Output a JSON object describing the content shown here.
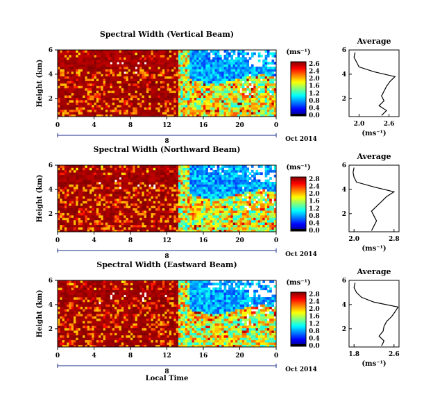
{
  "chart_data": {
    "type": "heatmap",
    "figure": {
      "xlabel": "Local Time",
      "date_label": "Oct 2014",
      "date_marker": "8",
      "colorbar_unit": "(ms⁻¹)"
    },
    "panels": [
      {
        "title": "Spectral Width (Vertical Beam)",
        "ylabel": "Height (km)",
        "x_ticks": [
          "0",
          "4",
          "8",
          "12",
          "16",
          "20",
          "0"
        ],
        "y_ticks": [
          "6",
          "4",
          "2"
        ],
        "xlim": [
          0,
          24
        ],
        "ylim": [
          0.5,
          6
        ],
        "colorbar_ticks": [
          "2.6",
          "2.4",
          "2.0",
          "1.6",
          "1.2",
          "0.8",
          "0.4",
          "0.0"
        ],
        "clim": [
          0,
          2.8
        ],
        "profile": {
          "title": "Average",
          "xlabel": "(ms⁻¹)",
          "x_ticks": [
            "2.0",
            "2.6"
          ],
          "xlim": [
            1.8,
            2.8
          ],
          "y_ticks": [
            "6",
            "4",
            "2"
          ],
          "ylim": [
            0.5,
            6
          ],
          "heights": [
            0.6,
            1.0,
            1.4,
            1.8,
            2.2,
            2.6,
            3.0,
            3.4,
            3.8,
            4.2,
            4.6,
            5.0,
            5.4,
            5.8
          ],
          "values": [
            2.45,
            2.55,
            2.4,
            2.5,
            2.45,
            2.5,
            2.55,
            2.62,
            2.72,
            2.3,
            2.0,
            1.95,
            1.9,
            1.92
          ]
        }
      },
      {
        "title": "Spectral Width (Northward Beam)",
        "ylabel": "Height (km)",
        "x_ticks": [
          "0",
          "4",
          "8",
          "12",
          "16",
          "20",
          "0"
        ],
        "y_ticks": [
          "6",
          "4",
          "2"
        ],
        "xlim": [
          0,
          24
        ],
        "ylim": [
          0.5,
          6
        ],
        "colorbar_ticks": [
          "2.8",
          "2.4",
          "2.0",
          "1.6",
          "1.2",
          "0.8",
          "0.4",
          "0.0"
        ],
        "clim": [
          0,
          2.8
        ],
        "profile": {
          "title": "Average",
          "xlabel": "(ms⁻¹)",
          "x_ticks": [
            "2.0",
            "2.8"
          ],
          "xlim": [
            1.9,
            2.9
          ],
          "y_ticks": [
            "6",
            "4",
            "2"
          ],
          "ylim": [
            0.5,
            6
          ],
          "heights": [
            0.6,
            1.0,
            1.4,
            1.8,
            2.2,
            2.6,
            3.0,
            3.4,
            3.8,
            4.2,
            4.6,
            5.0,
            5.4,
            5.8
          ],
          "values": [
            2.35,
            2.4,
            2.45,
            2.4,
            2.35,
            2.45,
            2.55,
            2.65,
            2.8,
            2.4,
            2.05,
            2.0,
            1.98,
            2.0
          ]
        }
      },
      {
        "title": "Spectral Width (Eastward Beam)",
        "ylabel": "Height (km)",
        "x_ticks": [
          "0",
          "4",
          "8",
          "12",
          "16",
          "20",
          "0"
        ],
        "y_ticks": [
          "6",
          "4",
          "2"
        ],
        "xlim": [
          0,
          24
        ],
        "ylim": [
          0.5,
          6
        ],
        "colorbar_ticks": [
          "2.8",
          "2.4",
          "2.0",
          "1.6",
          "1.2",
          "0.8",
          "0.4",
          "0.0"
        ],
        "clim": [
          0,
          2.8
        ],
        "profile": {
          "title": "Average",
          "xlabel": "(ms⁻¹)",
          "x_ticks": [
            "1.8",
            "2.6"
          ],
          "xlim": [
            1.7,
            2.7
          ],
          "y_ticks": [
            "6",
            "4",
            "2"
          ],
          "ylim": [
            0.5,
            6
          ],
          "heights": [
            0.6,
            1.0,
            1.4,
            1.8,
            2.2,
            2.6,
            3.0,
            3.4,
            3.8,
            4.2,
            4.6,
            5.0,
            5.4,
            5.8
          ],
          "values": [
            2.35,
            2.4,
            2.3,
            2.38,
            2.4,
            2.45,
            2.55,
            2.62,
            2.68,
            2.2,
            1.95,
            1.85,
            1.8,
            1.82
          ]
        }
      }
    ]
  }
}
